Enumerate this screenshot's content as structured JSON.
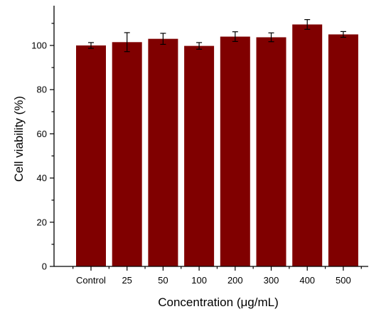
{
  "chart_data": {
    "type": "bar",
    "categories": [
      "Control",
      "25",
      "50",
      "100",
      "200",
      "300",
      "400",
      "500"
    ],
    "values": [
      100.0,
      101.5,
      103.0,
      99.8,
      104.0,
      103.7,
      109.5,
      105.0
    ],
    "errors": [
      1.3,
      4.3,
      2.5,
      1.5,
      2.2,
      2.0,
      2.2,
      1.3
    ],
    "title": "",
    "xlabel": "Concentration (μg/mL)",
    "ylabel": "Cell viability (%)",
    "ylim": [
      0,
      118
    ],
    "yticks": [
      0,
      20,
      40,
      60,
      80,
      100
    ],
    "bar_color": "#800000",
    "grid": false,
    "legend": "none"
  }
}
